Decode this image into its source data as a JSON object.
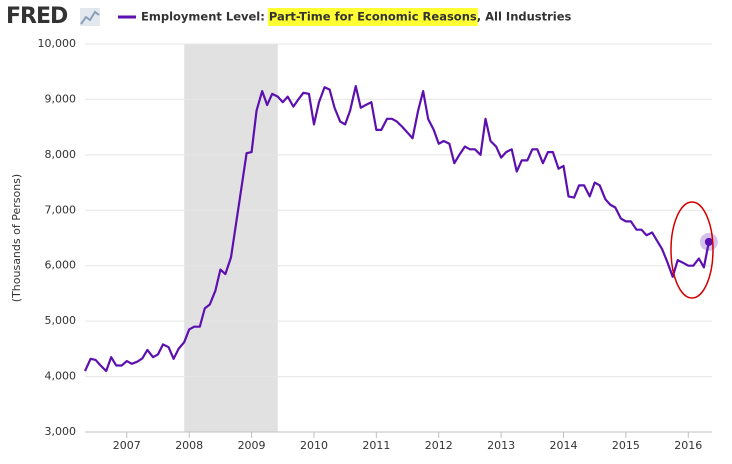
{
  "chart_data": {
    "type": "line",
    "logo": "FRED",
    "legend_parts": [
      "Employment Level: ",
      "Part-Time for Economic Reasons",
      ", All Industries"
    ],
    "legend_highlight": 1,
    "highlight_color": "#ffff33",
    "y_label": "(Thousands of Persons)",
    "xlim": [
      2006.33,
      2016.38
    ],
    "xticks": [
      2007,
      2008,
      2009,
      2010,
      2011,
      2012,
      2013,
      2014,
      2015,
      2016
    ],
    "ylim": [
      3000,
      10000
    ],
    "yticks": [
      {
        "value": 3000,
        "label": "3,000"
      },
      {
        "value": 4000,
        "label": "4,000"
      },
      {
        "value": 5000,
        "label": "5,000"
      },
      {
        "value": 6000,
        "label": "6,000"
      },
      {
        "value": 7000,
        "label": "7,000"
      },
      {
        "value": 8000,
        "label": "8,000"
      },
      {
        "value": 9000,
        "label": "9,000"
      },
      {
        "value": 10000,
        "label": "10,000"
      }
    ],
    "grid": true,
    "recessions": [
      [
        2007.92,
        2009.42
      ]
    ],
    "x": [
      2006.33,
      2006.42,
      2006.5,
      2006.58,
      2006.67,
      2006.75,
      2006.83,
      2006.92,
      2007,
      2007.08,
      2007.17,
      2007.25,
      2007.33,
      2007.42,
      2007.5,
      2007.58,
      2007.67,
      2007.75,
      2007.83,
      2007.92,
      2008,
      2008.08,
      2008.17,
      2008.25,
      2008.33,
      2008.42,
      2008.5,
      2008.58,
      2008.67,
      2008.75,
      2008.83,
      2008.92,
      2009,
      2009.08,
      2009.17,
      2009.25,
      2009.33,
      2009.42,
      2009.5,
      2009.58,
      2009.67,
      2009.75,
      2009.83,
      2009.92,
      2010,
      2010.08,
      2010.17,
      2010.25,
      2010.33,
      2010.42,
      2010.5,
      2010.58,
      2010.67,
      2010.75,
      2010.83,
      2010.92,
      2011,
      2011.08,
      2011.17,
      2011.25,
      2011.33,
      2011.42,
      2011.5,
      2011.58,
      2011.67,
      2011.75,
      2011.83,
      2011.92,
      2012,
      2012.08,
      2012.17,
      2012.25,
      2012.33,
      2012.42,
      2012.5,
      2012.58,
      2012.67,
      2012.75,
      2012.83,
      2012.92,
      2013,
      2013.08,
      2013.17,
      2013.25,
      2013.33,
      2013.42,
      2013.5,
      2013.58,
      2013.67,
      2013.75,
      2013.83,
      2013.92,
      2014,
      2014.08,
      2014.17,
      2014.25,
      2014.33,
      2014.42,
      2014.5,
      2014.58,
      2014.67,
      2014.75,
      2014.83,
      2014.92,
      2015,
      2015.08,
      2015.17,
      2015.25,
      2015.33,
      2015.42,
      2015.5,
      2015.58,
      2015.67,
      2015.75,
      2015.83,
      2015.92,
      2016,
      2016.08,
      2016.17,
      2016.25,
      2016.33
    ],
    "series": [
      {
        "color": "#5c10b0",
        "values": [
          4100,
          4320,
          4300,
          4200,
          4100,
          4350,
          4200,
          4200,
          4280,
          4230,
          4270,
          4330,
          4480,
          4350,
          4400,
          4580,
          4530,
          4320,
          4500,
          4620,
          4850,
          4900,
          4900,
          5230,
          5300,
          5550,
          5930,
          5850,
          6150,
          6750,
          7350,
          8030,
          8050,
          8800,
          9150,
          8900,
          9100,
          9050,
          8950,
          9050,
          8870,
          9000,
          9120,
          9100,
          8550,
          8950,
          9220,
          9180,
          8850,
          8600,
          8550,
          8800,
          9240,
          8850,
          8900,
          8950,
          8450,
          8450,
          8650,
          8650,
          8600,
          8500,
          8400,
          8300,
          8800,
          9150,
          8650,
          8450,
          8200,
          8250,
          8200,
          7850,
          8000,
          8150,
          8100,
          8100,
          8000,
          8650,
          8250,
          8150,
          7950,
          8050,
          8100,
          7700,
          7900,
          7900,
          8100,
          8100,
          7850,
          8050,
          8050,
          7750,
          7800,
          7250,
          7230,
          7450,
          7450,
          7250,
          7500,
          7450,
          7200,
          7100,
          7050,
          6850,
          6800,
          6800,
          6650,
          6650,
          6550,
          6600,
          6450,
          6300,
          6050,
          5800,
          6100,
          6050,
          6000,
          6000,
          6130,
          5970,
          6430
        ]
      }
    ]
  }
}
